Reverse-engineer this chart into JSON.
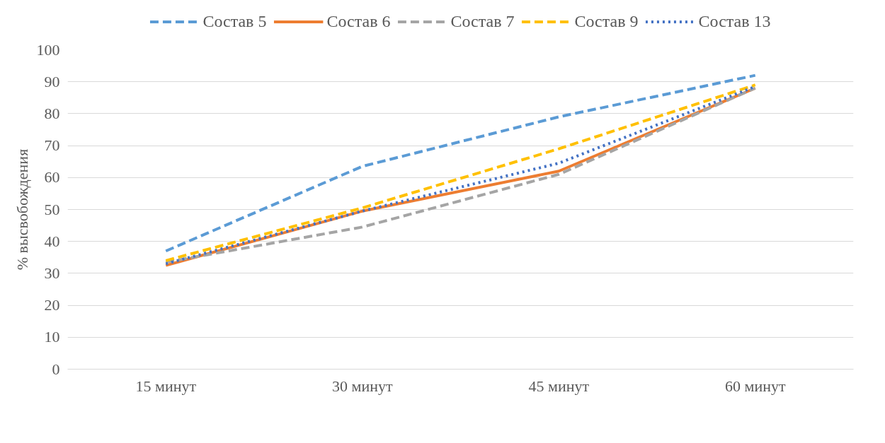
{
  "chart_data": {
    "type": "line",
    "ylabel": "% высвобождения",
    "categories": [
      "15 минут",
      "30 минут",
      "45 минут",
      "60 минут"
    ],
    "series": [
      {
        "name": "Состав 5",
        "color": "#5b9bd5",
        "line_style": "dashed",
        "values": [
          37,
          63.5,
          79,
          92
        ]
      },
      {
        "name": "Состав 6",
        "color": "#ed7d31",
        "line_style": "solid",
        "values": [
          32.5,
          49.5,
          62,
          88
        ]
      },
      {
        "name": "Состав 7",
        "color": "#a5a5a5",
        "line_style": "dashed",
        "values": [
          33.5,
          44.5,
          61,
          88
        ]
      },
      {
        "name": "Состав 9",
        "color": "#ffc000",
        "line_style": "dashed",
        "values": [
          34,
          50.5,
          69,
          89
        ]
      },
      {
        "name": "Состав 13",
        "color": "#4472c4",
        "line_style": "dotted",
        "values": [
          33,
          49.5,
          64.5,
          88.5
        ]
      }
    ],
    "ylim": [
      0,
      100
    ],
    "yticks": [
      0,
      10,
      20,
      30,
      40,
      50,
      60,
      70,
      80,
      90,
      100
    ],
    "grid": "y",
    "legend": "top",
    "marker": "none"
  }
}
